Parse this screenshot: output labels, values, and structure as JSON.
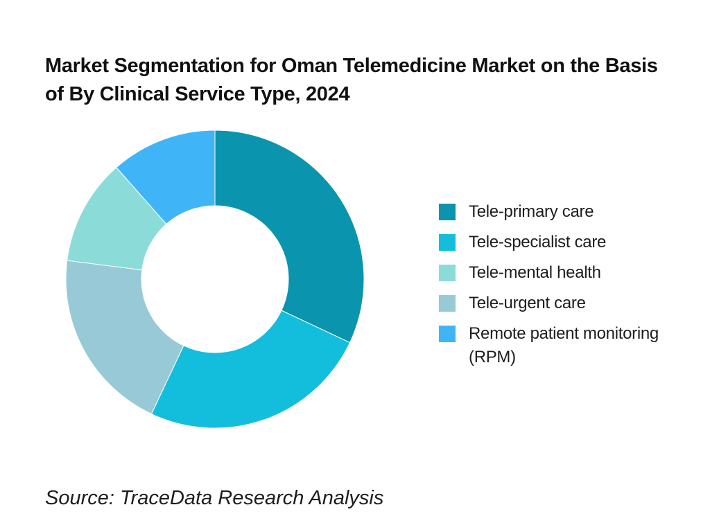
{
  "page": {
    "background": "#ffffff",
    "title": "Market Segmentation for Oman Telemedicine Market on the Basis of By Clinical Service Type, 2024",
    "source_note": "Source: TraceData Research Analysis",
    "title_color": "#111111",
    "text_color": "#1d1d1d"
  },
  "chart_data": {
    "type": "pie",
    "subtype": "donut",
    "title": "Market Segmentation for Oman Telemedicine Market on the Basis of By Clinical Service Type, 2024",
    "unit": "percent share (estimated from arc angles; no numeric labels shown)",
    "segments": [
      {
        "label": "Tele-primary care",
        "value": 32,
        "color": "#0A94AD"
      },
      {
        "label": "Tele-specialist care",
        "value": 25,
        "color": "#12BEDC"
      },
      {
        "label": "Tele-mental health",
        "value": 11.5,
        "color": "#8BDCD9"
      },
      {
        "label": "Tele-urgent care",
        "value": 20,
        "color": "#98C9D7"
      },
      {
        "label": "Remote patient monitoring (RPM)",
        "value": 11.5,
        "color": "#3FB5F8"
      }
    ],
    "draw_order_clockwise_from_top": [
      "Tele-primary care",
      "Tele-specialist care",
      "Tele-urgent care",
      "Tele-mental health",
      "Remote patient monitoring (RPM)"
    ],
    "start_angle_deg": 0,
    "direction": "clockwise",
    "inner_radius_ratio": 0.493,
    "hole_color": "#ffffff",
    "separator_color": "#ffffff",
    "legend_position": "right",
    "grid": false
  }
}
